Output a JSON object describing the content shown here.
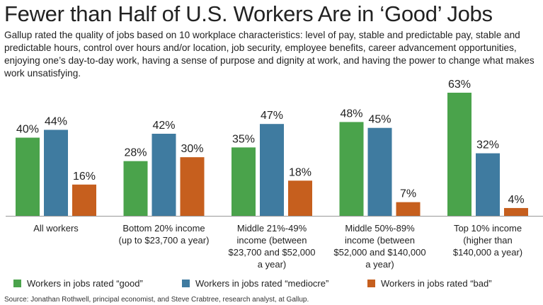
{
  "title": "Fewer than Half of U.S. Workers Are in ‘Good’ Jobs",
  "subtitle": "Gallup rated the quality of jobs based on 10 workplace characteristics: level of pay, stable and predictable pay, stable and predictable hours, control over hours and/or location, job security, employee benefits, career advancement opportunities, enjoying one’s day-to-day work, having a sense of purpose and dignity at work, and having the power to change what makes work unsatisfying.",
  "source": "Source: Jonathan Rothwell, principal economist, and Steve Crabtree, research analyst, at Gallup.",
  "colors": {
    "good": "#4aa34b",
    "mediocre": "#3f7ba0",
    "bad": "#c65f1e",
    "axis": "#999999"
  },
  "chart_data": {
    "type": "bar",
    "categories": [
      [
        "All workers"
      ],
      [
        "Bottom 20% income",
        "(up to $23,700 a year)"
      ],
      [
        "Middle 21%-49%",
        "income (between",
        "$23,700 and $52,000",
        "a year)"
      ],
      [
        "Middle 50%-89%",
        "income (between",
        "$52,000 and $140,000",
        "a year)"
      ],
      [
        "Top 10% income",
        "(higher than",
        "$140,000 a year)"
      ]
    ],
    "series": [
      {
        "name": "Workers in jobs rated “good”",
        "color": "#4aa34b",
        "values": [
          40,
          28,
          35,
          48,
          63
        ]
      },
      {
        "name": "Workers in jobs rated “mediocre”",
        "color": "#3f7ba0",
        "values": [
          44,
          42,
          47,
          45,
          32
        ]
      },
      {
        "name": "Workers in jobs rated “bad”",
        "color": "#c65f1e",
        "values": [
          16,
          30,
          18,
          7,
          4
        ]
      }
    ],
    "value_suffix": "%",
    "ylim": [
      0,
      63
    ],
    "legend_position": "bottom",
    "grid": false
  }
}
